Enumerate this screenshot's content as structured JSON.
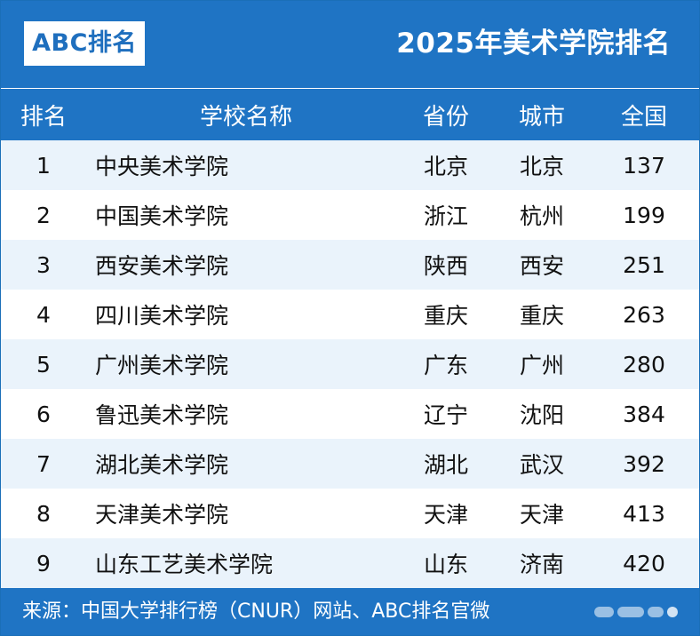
{
  "header": {
    "logo": "ABC排名",
    "title": "2025年美术学院排名"
  },
  "table": {
    "columns": {
      "rank": "排名",
      "name": "学校名称",
      "province": "省份",
      "city": "城市",
      "national": "全国"
    },
    "rows": [
      {
        "rank": "1",
        "name": "中央美术学院",
        "province": "北京",
        "city": "北京",
        "national": "137"
      },
      {
        "rank": "2",
        "name": "中国美术学院",
        "province": "浙江",
        "city": "杭州",
        "national": "199"
      },
      {
        "rank": "3",
        "name": "西安美术学院",
        "province": "陕西",
        "city": "西安",
        "national": "251"
      },
      {
        "rank": "4",
        "name": "四川美术学院",
        "province": "重庆",
        "city": "重庆",
        "national": "263"
      },
      {
        "rank": "5",
        "name": "广州美术学院",
        "province": "广东",
        "city": "广州",
        "national": "280"
      },
      {
        "rank": "6",
        "name": "鲁迅美术学院",
        "province": "辽宁",
        "city": "沈阳",
        "national": "384"
      },
      {
        "rank": "7",
        "name": "湖北美术学院",
        "province": "湖北",
        "city": "武汉",
        "national": "392"
      },
      {
        "rank": "8",
        "name": "天津美术学院",
        "province": "天津",
        "city": "天津",
        "national": "413"
      },
      {
        "rank": "9",
        "name": "山东工艺美术学院",
        "province": "山东",
        "city": "济南",
        "national": "420"
      }
    ]
  },
  "footer": {
    "source": "来源：中国大学排行榜（CNUR）网站、ABC排名官微"
  },
  "colors": {
    "brand_blue": "#1f74c4",
    "row_alt": "#eaf3fb"
  }
}
